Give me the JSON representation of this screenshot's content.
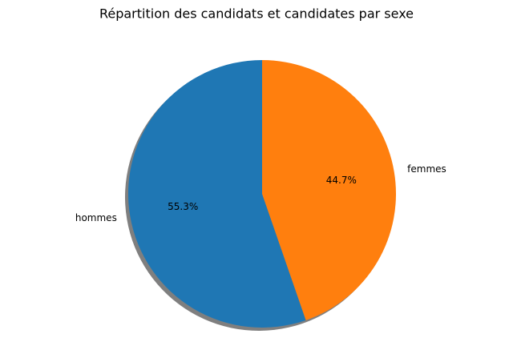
{
  "chart_data": {
    "type": "pie",
    "title": "Répartition des candidats et candidates par sexe",
    "categories": [
      "hommes",
      "femmes"
    ],
    "values": [
      55.3,
      44.7
    ],
    "value_labels": [
      "55.3%",
      "44.7%"
    ],
    "colors": [
      "#1f77b4",
      "#ff7f0e"
    ],
    "start_angle": 90,
    "shadow": true
  }
}
